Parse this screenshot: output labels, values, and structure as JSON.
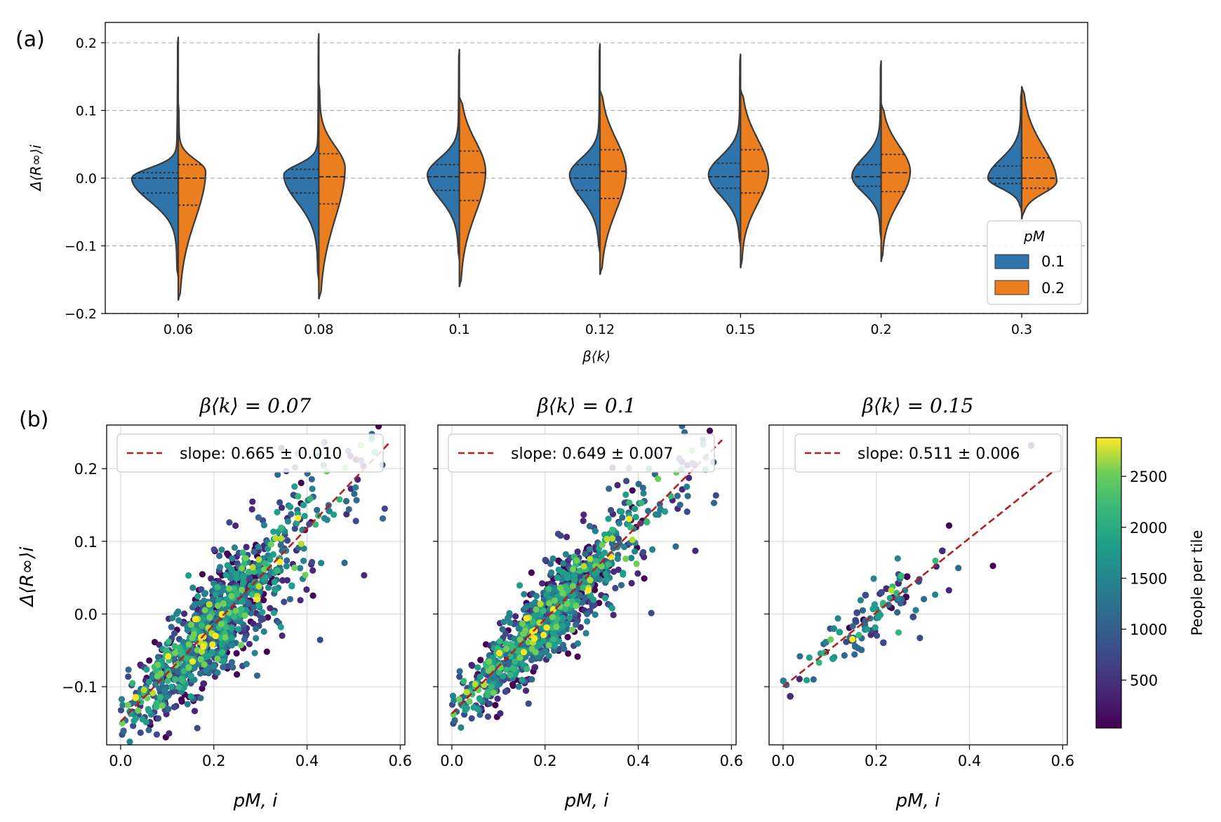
{
  "colors": {
    "pm_0_1": "#2f74ab",
    "pm_0_2": "#eb7f1f",
    "fit_line": "#b2201f",
    "grid": "#b0b0b0"
  },
  "chart_data": [
    {
      "panel": "(a)",
      "type": "violin",
      "split": true,
      "xlabel": "β⟨k⟩",
      "ylabel": "Δ⟨R∞⟩i",
      "categories": [
        "0.06",
        "0.08",
        "0.1",
        "0.12",
        "0.15",
        "0.2",
        "0.3"
      ],
      "ylim": [
        -0.2,
        0.23
      ],
      "yticks": [
        -0.2,
        -0.1,
        0.0,
        0.1,
        0.2
      ],
      "ytick_labels": [
        "−0.2",
        "−0.1",
        "0.0",
        "0.1",
        "0.2"
      ],
      "grid": "horizontal dashed",
      "legend": {
        "title": "pM",
        "position": "bottom-right",
        "entries": [
          "0.1",
          "0.2"
        ]
      },
      "series": [
        {
          "name": "0.1",
          "side": "left",
          "violins": [
            {
              "min": -0.145,
              "max": 0.208,
              "q1": -0.022,
              "median": 0.0,
              "q3": 0.008,
              "mode": 0.0,
              "width": 0.8
            },
            {
              "min": -0.15,
              "max": 0.213,
              "q1": -0.022,
              "median": 0.0,
              "q3": 0.013,
              "mode": 0.005,
              "width": 0.6
            },
            {
              "min": -0.12,
              "max": 0.19,
              "q1": -0.018,
              "median": 0.002,
              "q3": 0.02,
              "mode": 0.005,
              "width": 0.55
            },
            {
              "min": -0.11,
              "max": 0.198,
              "q1": -0.018,
              "median": 0.0,
              "q3": 0.02,
              "mode": 0.005,
              "width": 0.52
            },
            {
              "min": -0.1,
              "max": 0.183,
              "q1": -0.015,
              "median": 0.002,
              "q3": 0.022,
              "mode": 0.005,
              "width": 0.55
            },
            {
              "min": -0.09,
              "max": 0.173,
              "q1": -0.012,
              "median": 0.002,
              "q3": 0.02,
              "mode": 0.003,
              "width": 0.5
            },
            {
              "min": -0.05,
              "max": 0.13,
              "q1": -0.008,
              "median": 0.0,
              "q3": 0.018,
              "mode": 0.0,
              "width": 0.58
            }
          ]
        },
        {
          "name": "0.2",
          "side": "right",
          "violins": [
            {
              "min": -0.18,
              "max": 0.11,
              "q1": -0.04,
              "median": 0.0,
              "q3": 0.02,
              "mode": 0.01,
              "width": 0.47
            },
            {
              "min": -0.178,
              "max": 0.14,
              "q1": -0.038,
              "median": 0.002,
              "q3": 0.036,
              "mode": 0.015,
              "width": 0.45
            },
            {
              "min": -0.16,
              "max": 0.12,
              "q1": -0.033,
              "median": 0.008,
              "q3": 0.04,
              "mode": 0.01,
              "width": 0.45
            },
            {
              "min": -0.142,
              "max": 0.13,
              "q1": -0.03,
              "median": 0.01,
              "q3": 0.042,
              "mode": 0.01,
              "width": 0.45
            },
            {
              "min": -0.132,
              "max": 0.13,
              "q1": -0.022,
              "median": 0.01,
              "q3": 0.042,
              "mode": 0.01,
              "width": 0.48
            },
            {
              "min": -0.123,
              "max": 0.11,
              "q1": -0.02,
              "median": 0.008,
              "q3": 0.035,
              "mode": 0.01,
              "width": 0.5
            },
            {
              "min": -0.06,
              "max": 0.135,
              "q1": -0.015,
              "median": 0.0,
              "q3": 0.03,
              "mode": -0.005,
              "width": 0.6
            }
          ]
        }
      ]
    },
    {
      "panel": "(b)",
      "type": "scatter",
      "title": "β⟨k⟩ = 0.07",
      "xlabel": "pM, i",
      "ylabel": "Δ⟨R∞⟩i",
      "xlim": [
        -0.03,
        0.61
      ],
      "ylim": [
        -0.18,
        0.26
      ],
      "xticks": [
        0.0,
        0.2,
        0.4,
        0.6
      ],
      "xtick_labels": [
        "0.0",
        "0.2",
        "0.4",
        "0.6"
      ],
      "yticks": [
        -0.1,
        0.0,
        0.1,
        0.2
      ],
      "ytick_labels": [
        "−0.1",
        "0.0",
        "0.1",
        "0.2"
      ],
      "fit": {
        "label": "slope: 0.665 ± 0.010",
        "intercept": -0.148,
        "slope": 0.665
      },
      "color_by": "People per tile"
    },
    {
      "panel": "(b)",
      "type": "scatter",
      "title": "β⟨k⟩ = 0.1",
      "xlabel": "pM, i",
      "xlim": [
        -0.03,
        0.61
      ],
      "ylim": [
        -0.18,
        0.26
      ],
      "xticks": [
        0.0,
        0.2,
        0.4,
        0.6
      ],
      "xtick_labels": [
        "0.0",
        "0.2",
        "0.4",
        "0.6"
      ],
      "fit": {
        "label": "slope: 0.649 ± 0.007",
        "intercept": -0.137,
        "slope": 0.649
      },
      "color_by": "People per tile"
    },
    {
      "panel": "(b)",
      "type": "scatter",
      "title": "β⟨k⟩ = 0.15",
      "xlabel": "pM, i",
      "xlim": [
        -0.03,
        0.61
      ],
      "ylim": [
        -0.18,
        0.26
      ],
      "xticks": [
        0.0,
        0.2,
        0.4,
        0.6
      ],
      "xtick_labels": [
        "0.0",
        "0.2",
        "0.4",
        "0.6"
      ],
      "fit": {
        "label": "slope: 0.511 ± 0.006",
        "intercept": -0.1,
        "slope": 0.511
      },
      "color_by": "People per tile"
    }
  ],
  "colorbar": {
    "label": "People per tile",
    "range": [
      30,
      2880
    ],
    "ticks": [
      500,
      1000,
      1500,
      2000,
      2500
    ],
    "tick_labels": [
      "500",
      "1000",
      "1500",
      "2000",
      "2500"
    ],
    "colormap": "viridis"
  }
}
